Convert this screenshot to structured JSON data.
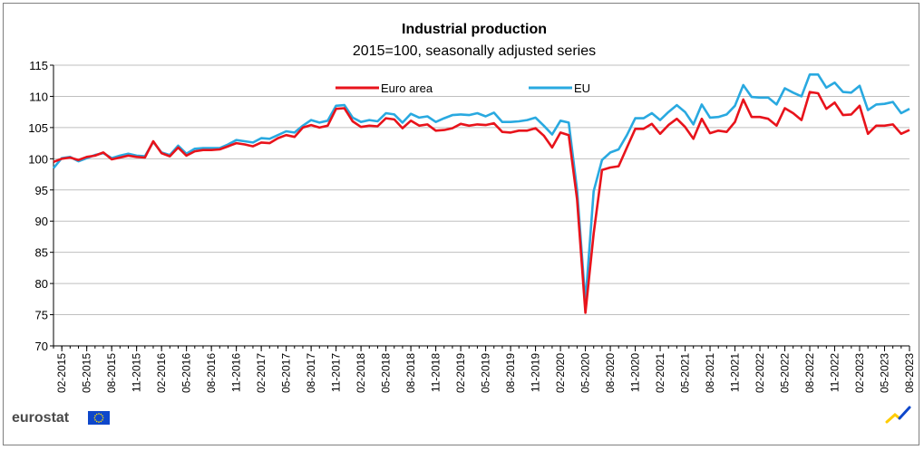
{
  "brand": {
    "name": "eurostat",
    "flag_color": "#0e47cb",
    "star_color": "#ffde00",
    "mark_colors": [
      "#ffcc00",
      "#0e47cb"
    ]
  },
  "chart_data": {
    "type": "line",
    "title": "Industrial production",
    "subtitle": "2015=100, seasonally adjusted series",
    "xlabel": "",
    "ylabel": "",
    "ylim": [
      70,
      115
    ],
    "yticks": [
      70,
      75,
      80,
      85,
      90,
      95,
      100,
      105,
      110,
      115
    ],
    "grid": true,
    "legend_position": "top-center",
    "x_ticks": [
      "02-2015",
      "05-2015",
      "08-2015",
      "11-2015",
      "02-2016",
      "05-2016",
      "08-2016",
      "11-2016",
      "02-2017",
      "05-2017",
      "08-2017",
      "11-2017",
      "02-2018",
      "05-2018",
      "08-2018",
      "11-2018",
      "02-2019",
      "05-2019",
      "08-2019",
      "11-2019",
      "02-2020",
      "05-2020",
      "08-2020",
      "11-2020",
      "02-2021",
      "05-2021",
      "08-2021",
      "11-2021",
      "02-2022",
      "05-2022",
      "08-2022",
      "11-2022",
      "02-2023",
      "05-2023",
      "08-2023"
    ],
    "x_start": "01-2015",
    "x_end": "08-2023",
    "series": [
      {
        "name": "Euro area",
        "color": "#e8131b",
        "values": [
          99.5,
          100.0,
          100.2,
          99.8,
          100.3,
          100.5,
          101.0,
          99.9,
          100.2,
          100.5,
          100.3,
          100.2,
          102.8,
          100.9,
          100.4,
          101.8,
          100.5,
          101.2,
          101.4,
          101.4,
          101.5,
          102.0,
          102.5,
          102.3,
          102.0,
          102.6,
          102.5,
          103.3,
          103.8,
          103.5,
          105.0,
          105.4,
          105.0,
          105.3,
          108.0,
          108.1,
          106.0,
          105.1,
          105.3,
          105.2,
          106.5,
          106.3,
          104.9,
          106.1,
          105.3,
          105.5,
          104.5,
          104.6,
          104.9,
          105.6,
          105.3,
          105.5,
          105.4,
          105.7,
          104.3,
          104.2,
          104.5,
          104.5,
          104.9,
          103.7,
          101.8,
          104.2,
          103.8,
          93.5,
          75.3,
          88.0,
          98.2,
          98.6,
          98.8,
          101.8,
          104.8,
          104.8,
          105.6,
          104.0,
          105.4,
          106.4,
          105.1,
          103.2,
          106.4,
          104.1,
          104.5,
          104.3,
          105.9,
          109.5,
          106.7,
          106.7,
          106.4,
          105.3,
          108.1,
          107.3,
          106.2,
          110.7,
          110.5,
          108.0,
          109.0,
          107.0,
          107.1,
          108.5,
          104.0,
          105.3,
          105.3,
          105.5,
          104.0,
          104.6
        ]
      },
      {
        "name": "EU",
        "color": "#29a9e0",
        "values": [
          98.5,
          100.1,
          100.3,
          99.6,
          100.1,
          100.6,
          100.9,
          100.1,
          100.5,
          100.8,
          100.5,
          100.4,
          102.7,
          101.0,
          100.6,
          102.1,
          100.8,
          101.6,
          101.7,
          101.7,
          101.7,
          102.3,
          103.0,
          102.8,
          102.6,
          103.3,
          103.2,
          103.8,
          104.4,
          104.2,
          105.3,
          106.2,
          105.8,
          106.1,
          108.5,
          108.6,
          106.6,
          105.9,
          106.2,
          106.0,
          107.3,
          107.1,
          105.8,
          107.2,
          106.6,
          106.8,
          105.9,
          106.5,
          107.0,
          107.1,
          107.0,
          107.3,
          106.8,
          107.4,
          105.9,
          105.9,
          106.0,
          106.2,
          106.6,
          105.3,
          103.9,
          106.1,
          105.8,
          95.0,
          77.0,
          94.8,
          99.8,
          101.0,
          101.5,
          103.8,
          106.5,
          106.5,
          107.3,
          106.2,
          107.5,
          108.6,
          107.5,
          105.5,
          108.7,
          106.6,
          106.7,
          107.1,
          108.5,
          111.8,
          109.9,
          109.8,
          109.8,
          108.7,
          111.3,
          110.6,
          110.0,
          113.5,
          113.5,
          111.4,
          112.2,
          110.7,
          110.6,
          111.7,
          107.8,
          108.7,
          108.8,
          109.1,
          107.3,
          108.0
        ]
      }
    ]
  }
}
